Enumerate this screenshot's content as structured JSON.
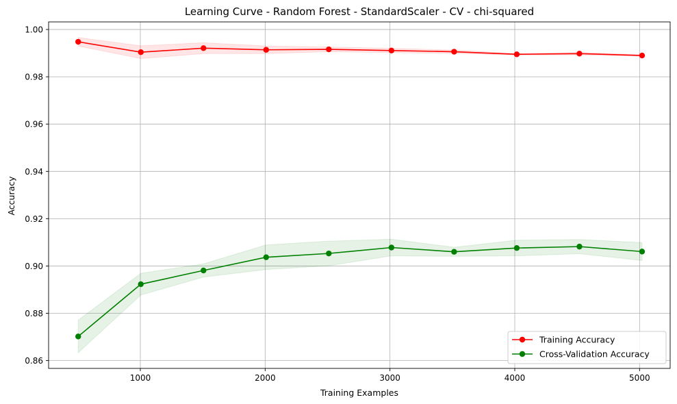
{
  "chart_data": {
    "type": "line",
    "title": "Learning Curve - Random Forest - StandardScaler - CV - chi-squared",
    "xlabel": "Training Examples",
    "ylabel": "Accuracy",
    "xlim": [
      265,
      5245
    ],
    "ylim": [
      0.8567,
      1.0032
    ],
    "x_ticks": [
      1000,
      2000,
      3000,
      4000,
      5000
    ],
    "x_tick_labels": [
      "1000",
      "2000",
      "3000",
      "4000",
      "5000"
    ],
    "y_ticks": [
      0.86,
      0.88,
      0.9,
      0.92,
      0.94,
      0.96,
      0.98,
      1.0
    ],
    "y_tick_labels": [
      "0.86",
      "0.88",
      "0.90",
      "0.92",
      "0.94",
      "0.96",
      "0.98",
      "1.00"
    ],
    "grid": true,
    "legend_position": "bottom-right",
    "x": [
      502,
      1004,
      1506,
      2008,
      2510,
      3012,
      3514,
      4016,
      4518,
      5020
    ],
    "series": [
      {
        "name": "Training Accuracy",
        "color": "#ff0000",
        "band_color": "#ffcccc",
        "values": [
          0.9948,
          0.9904,
          0.9921,
          0.9914,
          0.9916,
          0.9911,
          0.9906,
          0.9895,
          0.9898,
          0.989
        ],
        "lower": [
          0.993,
          0.9877,
          0.9898,
          0.9898,
          0.9906,
          0.9902,
          0.9899,
          0.9892,
          0.9893,
          0.9887
        ],
        "upper": [
          0.9966,
          0.9931,
          0.9944,
          0.993,
          0.9926,
          0.992,
          0.9913,
          0.9898,
          0.9903,
          0.9893
        ]
      },
      {
        "name": "Cross-Validation Accuracy",
        "color": "#008000",
        "band_color": "#cce6cc",
        "values": [
          0.8702,
          0.8923,
          0.8981,
          0.9037,
          0.9053,
          0.9078,
          0.906,
          0.9076,
          0.9082,
          0.9061
        ],
        "lower": [
          0.8633,
          0.8877,
          0.8953,
          0.8985,
          0.9001,
          0.9043,
          0.9041,
          0.9043,
          0.9052,
          0.9023
        ],
        "upper": [
          0.8771,
          0.8969,
          0.9009,
          0.9089,
          0.9105,
          0.9113,
          0.9079,
          0.9109,
          0.9112,
          0.9099
        ]
      }
    ]
  }
}
